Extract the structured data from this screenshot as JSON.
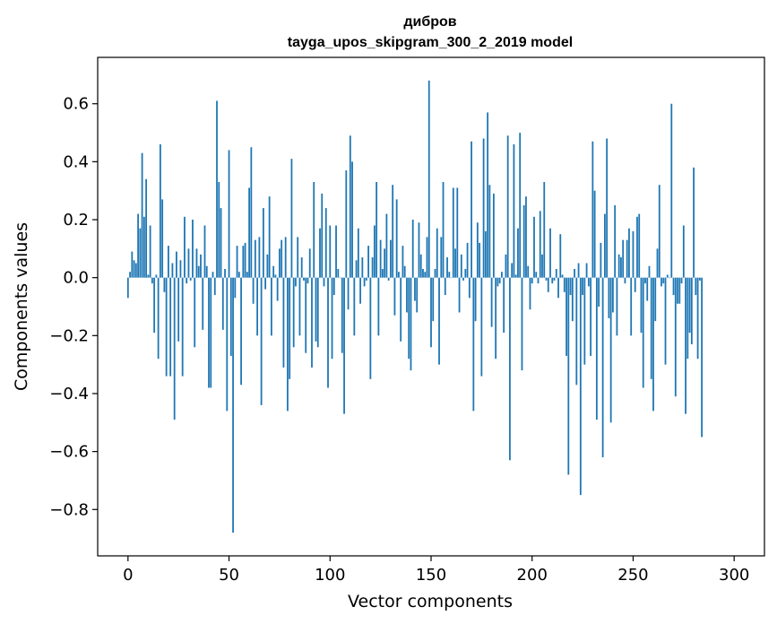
{
  "chart_data": {
    "type": "bar",
    "title_line1": "дибров",
    "title_line2": "tayga_upos_skipgram_300_2_2019 model",
    "xlabel": "Vector components",
    "ylabel": "Components values",
    "xlim": [
      -15,
      315
    ],
    "ylim": [
      -0.96,
      0.76
    ],
    "xticks": [
      0,
      50,
      100,
      150,
      200,
      250,
      300
    ],
    "xtick_labels": [
      "0",
      "50",
      "100",
      "150",
      "200",
      "250",
      "300"
    ],
    "yticks": [
      -0.8,
      -0.6,
      -0.4,
      -0.2,
      0.0,
      0.2,
      0.4,
      0.6
    ],
    "ytick_labels": [
      "−0.8",
      "−0.6",
      "−0.4",
      "−0.2",
      "0.0",
      "0.2",
      "0.4",
      "0.6"
    ],
    "bar_color": "#1f77b4",
    "grid": false,
    "values": [
      -0.07,
      0.02,
      0.09,
      0.06,
      0.05,
      0.22,
      0.17,
      0.43,
      0.21,
      0.34,
      0.01,
      0.18,
      -0.02,
      -0.19,
      0.01,
      -0.28,
      0.46,
      0.27,
      -0.05,
      -0.34,
      0.11,
      -0.34,
      0.05,
      -0.49,
      0.09,
      -0.22,
      0.06,
      -0.34,
      0.21,
      -0.02,
      0.1,
      -0.01,
      0.2,
      -0.24,
      0.1,
      0.04,
      0.08,
      -0.18,
      0.18,
      0.04,
      -0.38,
      -0.38,
      0.02,
      -0.06,
      0.61,
      0.33,
      0.24,
      -0.18,
      0.03,
      -0.46,
      0.44,
      -0.27,
      -0.88,
      -0.07,
      0.11,
      0.02,
      -0.37,
      0.11,
      0.12,
      0.02,
      0.31,
      0.45,
      -0.09,
      0.13,
      -0.2,
      0.14,
      -0.44,
      0.24,
      -0.04,
      0.08,
      0.28,
      -0.2,
      0.04,
      0.01,
      -0.08,
      0.1,
      0.13,
      -0.31,
      0.14,
      -0.46,
      -0.35,
      0.41,
      -0.24,
      -0.03,
      0.14,
      -0.2,
      0.07,
      -0.01,
      -0.26,
      -0.02,
      0.1,
      -0.31,
      0.33,
      -0.22,
      -0.24,
      0.17,
      0.29,
      -0.03,
      0.24,
      -0.38,
      0.18,
      -0.28,
      -0.06,
      0.18,
      0.03,
      0.0,
      -0.26,
      -0.47,
      0.37,
      -0.11,
      0.49,
      0.4,
      -0.2,
      0.06,
      0.17,
      -0.09,
      0.07,
      -0.03,
      -0.01,
      0.11,
      -0.35,
      0.07,
      0.18,
      0.33,
      -0.2,
      0.13,
      0.03,
      0.1,
      0.22,
      -0.01,
      0.13,
      0.32,
      -0.13,
      0.27,
      0.02,
      -0.22,
      0.11,
      0.04,
      -0.12,
      -0.28,
      -0.32,
      0.2,
      -0.08,
      -0.12,
      0.19,
      0.08,
      0.03,
      0.02,
      0.14,
      0.68,
      -0.24,
      -0.15,
      0.03,
      0.17,
      -0.3,
      0.14,
      0.33,
      -0.06,
      0.07,
      0.02,
      0.0,
      0.31,
      0.1,
      0.31,
      -0.12,
      0.08,
      -0.01,
      0.03,
      0.12,
      -0.07,
      0.47,
      -0.46,
      -0.15,
      0.19,
      0.12,
      -0.34,
      0.48,
      0.16,
      0.57,
      0.32,
      -0.17,
      0.29,
      -0.28,
      -0.03,
      -0.02,
      0.02,
      -0.19,
      0.08,
      0.49,
      -0.63,
      0.05,
      0.46,
      0.01,
      0.17,
      0.5,
      -0.32,
      0.25,
      0.28,
      0.04,
      -0.11,
      -0.02,
      0.21,
      0.02,
      -0.02,
      0.23,
      0.08,
      0.33,
      -0.01,
      -0.05,
      0.17,
      -0.02,
      -0.01,
      0.03,
      -0.07,
      0.15,
      0.01,
      -0.05,
      -0.27,
      -0.68,
      -0.06,
      -0.15,
      0.03,
      -0.37,
      0.05,
      -0.75,
      -0.06,
      -0.3,
      0.05,
      -0.03,
      -0.27,
      0.47,
      0.3,
      -0.49,
      -0.1,
      0.12,
      -0.62,
      0.22,
      0.48,
      -0.14,
      -0.5,
      -0.12,
      0.25,
      -0.2,
      0.08,
      0.07,
      0.13,
      -0.02,
      0.13,
      0.17,
      -0.2,
      0.16,
      -0.05,
      0.21,
      0.22,
      -0.19,
      -0.38,
      -0.02,
      -0.08,
      0.04,
      -0.35,
      -0.46,
      -0.15,
      0.1,
      0.32,
      -0.03,
      -0.02,
      -0.3,
      0.01,
      0.0,
      0.6,
      -0.06,
      -0.41,
      -0.09,
      -0.09,
      -0.02,
      0.18,
      -0.47,
      -0.28,
      -0.19,
      -0.23,
      0.38,
      -0.06,
      -0.28,
      -0.01,
      -0.55
    ]
  }
}
